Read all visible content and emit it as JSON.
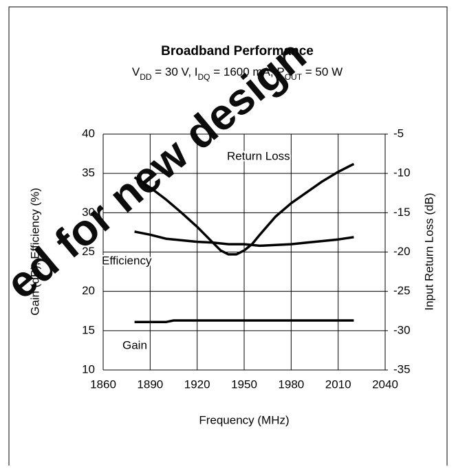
{
  "chart_data": {
    "type": "line",
    "title": "Broadband Performance",
    "subtitle": [
      "V",
      "DD",
      " = 30 V, I",
      "DQ",
      " = 1600 mA, P",
      "OUT",
      " = 50 W"
    ],
    "watermark": "ed for new design",
    "xlabel": "Frequency (MHz)",
    "ylabel": "Gain (dB), Efficiency (%)",
    "y2label": "Input Return Loss (dB)",
    "xlim": [
      1860,
      2040
    ],
    "xticks": [
      1860,
      1890,
      1920,
      1950,
      1980,
      2010,
      2040
    ],
    "ylim": [
      10,
      40
    ],
    "yticks": [
      10,
      15,
      20,
      25,
      30,
      35,
      40
    ],
    "y2lim": [
      -35,
      -5
    ],
    "y2ticks": [
      -35,
      -30,
      -25,
      -20,
      -15,
      -10,
      -5
    ],
    "grid": true,
    "series": [
      {
        "name": "Gain",
        "color": "#000000",
        "x": [
          1880,
          1890,
          1900,
          1905,
          1920,
          1950,
          1980,
          2000,
          2020
        ],
        "values": [
          16.1,
          16.1,
          16.1,
          16.3,
          16.3,
          16.3,
          16.3,
          16.3,
          16.3
        ]
      },
      {
        "name": "Efficiency",
        "color": "#000000",
        "x": [
          1880,
          1890,
          1900,
          1910,
          1920,
          1930,
          1940,
          1950,
          1960,
          1970,
          1980,
          1990,
          2000,
          2010,
          2020
        ],
        "values": [
          27.6,
          27.2,
          26.7,
          26.5,
          26.3,
          26.2,
          26.0,
          26.0,
          25.8,
          25.9,
          26.0,
          26.2,
          26.4,
          26.6,
          26.9
        ]
      },
      {
        "name": "Return Loss",
        "color": "#000000",
        "axis": "y2",
        "x": [
          1880,
          1890,
          1900,
          1910,
          1920,
          1930,
          1935,
          1940,
          1945,
          1950,
          1955,
          1960,
          1970,
          1980,
          1990,
          2000,
          2010,
          2020
        ],
        "values": [
          -10.5,
          -11.8,
          -13.3,
          -15.0,
          -16.8,
          -18.8,
          -19.8,
          -20.3,
          -20.3,
          -19.8,
          -19.0,
          -17.8,
          -15.5,
          -13.8,
          -12.4,
          -11.0,
          -9.8,
          -8.8
        ]
      }
    ]
  }
}
